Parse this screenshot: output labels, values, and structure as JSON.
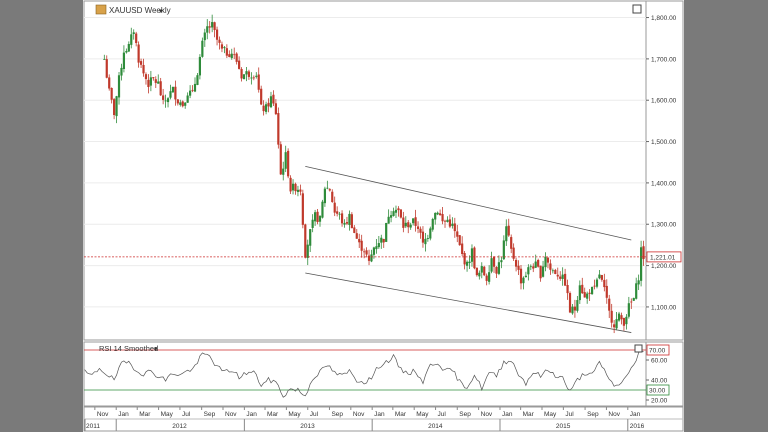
{
  "chart_data": [
    {
      "type": "candlestick",
      "title": "XAUUSD Weekly",
      "title_arrow": "▾",
      "ylim": [
        1020,
        1840
      ],
      "y_ticks": [
        "1,100.00",
        "1,200.00",
        "1,300.00",
        "1,400.00",
        "1,500.00",
        "1,600.00",
        "1,700.00",
        "1,800.00"
      ],
      "y_tick_values": [
        1100,
        1200,
        1300,
        1400,
        1500,
        1600,
        1700,
        1800
      ],
      "current_price": 1221.01,
      "current_price_label": "1,221.01",
      "colors": {
        "up": "#2e8b3a",
        "down": "#c0392b",
        "price_line": "#cc2a2a",
        "channel": "#555555"
      },
      "channel": {
        "upper": [
          [
            "2013-06-24",
            1440
          ],
          [
            "2016-01-11",
            1262
          ]
        ],
        "lower": [
          [
            "2013-06-24",
            1182
          ],
          [
            "2016-01-11",
            1038
          ]
        ]
      },
      "closes": [
        [
          "2011-11-28",
          1700
        ],
        [
          "2011-12-12",
          1620
        ],
        [
          "2011-12-26",
          1570
        ],
        [
          "2012-01-09",
          1650
        ],
        [
          "2012-01-23",
          1720
        ],
        [
          "2012-02-06",
          1730
        ],
        [
          "2012-02-20",
          1770
        ],
        [
          "2012-03-05",
          1700
        ],
        [
          "2012-03-19",
          1665
        ],
        [
          "2012-04-02",
          1640
        ],
        [
          "2012-04-16",
          1650
        ],
        [
          "2012-04-30",
          1640
        ],
        [
          "2012-05-14",
          1590
        ],
        [
          "2012-05-28",
          1610
        ],
        [
          "2012-06-11",
          1625
        ],
        [
          "2012-06-25",
          1600
        ],
        [
          "2012-07-09",
          1590
        ],
        [
          "2012-07-23",
          1620
        ],
        [
          "2012-08-06",
          1615
        ],
        [
          "2012-08-20",
          1670
        ],
        [
          "2012-09-03",
          1735
        ],
        [
          "2012-09-17",
          1775
        ],
        [
          "2012-10-01",
          1780
        ],
        [
          "2012-10-15",
          1745
        ],
        [
          "2012-10-29",
          1720
        ],
        [
          "2012-11-12",
          1715
        ],
        [
          "2012-11-26",
          1715
        ],
        [
          "2012-12-10",
          1695
        ],
        [
          "2012-12-24",
          1660
        ],
        [
          "2013-01-07",
          1665
        ],
        [
          "2013-01-21",
          1665
        ],
        [
          "2013-02-04",
          1665
        ],
        [
          "2013-02-18",
          1580
        ],
        [
          "2013-03-04",
          1580
        ],
        [
          "2013-03-18",
          1605
        ],
        [
          "2013-04-01",
          1570
        ],
        [
          "2013-04-15",
          1420
        ],
        [
          "2013-04-29",
          1465
        ],
        [
          "2013-05-13",
          1385
        ],
        [
          "2013-05-27",
          1390
        ],
        [
          "2013-06-10",
          1385
        ],
        [
          "2013-06-24",
          1230
        ],
        [
          "2013-07-08",
          1280
        ],
        [
          "2013-07-22",
          1320
        ],
        [
          "2013-08-05",
          1310
        ],
        [
          "2013-08-19",
          1390
        ],
        [
          "2013-09-02",
          1385
        ],
        [
          "2013-09-16",
          1330
        ],
        [
          "2013-09-30",
          1320
        ],
        [
          "2013-10-14",
          1295
        ],
        [
          "2013-10-28",
          1320
        ],
        [
          "2013-11-11",
          1280
        ],
        [
          "2013-11-25",
          1250
        ],
        [
          "2013-12-09",
          1240
        ],
        [
          "2013-12-23",
          1205
        ],
        [
          "2014-01-06",
          1245
        ],
        [
          "2014-01-20",
          1260
        ],
        [
          "2014-02-03",
          1265
        ],
        [
          "2014-02-17",
          1325
        ],
        [
          "2014-03-03",
          1340
        ],
        [
          "2014-03-17",
          1330
        ],
        [
          "2014-03-31",
          1295
        ],
        [
          "2014-04-14",
          1300
        ],
        [
          "2014-04-28",
          1305
        ],
        [
          "2014-05-12",
          1295
        ],
        [
          "2014-05-26",
          1250
        ],
        [
          "2014-06-09",
          1275
        ],
        [
          "2014-06-23",
          1320
        ],
        [
          "2014-07-07",
          1335
        ],
        [
          "2014-07-21",
          1305
        ],
        [
          "2014-08-04",
          1310
        ],
        [
          "2014-08-18",
          1295
        ],
        [
          "2014-09-01",
          1265
        ],
        [
          "2014-09-15",
          1225
        ],
        [
          "2014-09-29",
          1200
        ],
        [
          "2014-10-13",
          1235
        ],
        [
          "2014-10-27",
          1170
        ],
        [
          "2014-11-10",
          1190
        ],
        [
          "2014-11-24",
          1170
        ],
        [
          "2014-12-08",
          1220
        ],
        [
          "2014-12-22",
          1190
        ],
        [
          "2015-01-05",
          1220
        ],
        [
          "2015-01-19",
          1290
        ],
        [
          "2015-02-02",
          1235
        ],
        [
          "2015-02-16",
          1205
        ],
        [
          "2015-03-02",
          1165
        ],
        [
          "2015-03-16",
          1180
        ],
        [
          "2015-03-30",
          1200
        ],
        [
          "2015-04-13",
          1200
        ],
        [
          "2015-04-27",
          1180
        ],
        [
          "2015-05-11",
          1225
        ],
        [
          "2015-05-25",
          1190
        ],
        [
          "2015-06-08",
          1185
        ],
        [
          "2015-06-22",
          1175
        ],
        [
          "2015-07-06",
          1160
        ],
        [
          "2015-07-20",
          1090
        ],
        [
          "2015-08-03",
          1095
        ],
        [
          "2015-08-17",
          1160
        ],
        [
          "2015-08-31",
          1120
        ],
        [
          "2015-09-14",
          1140
        ],
        [
          "2015-09-28",
          1140
        ],
        [
          "2015-10-12",
          1180
        ],
        [
          "2015-10-26",
          1140
        ],
        [
          "2015-11-09",
          1085
        ],
        [
          "2015-11-23",
          1060
        ],
        [
          "2015-12-07",
          1075
        ],
        [
          "2015-12-21",
          1065
        ],
        [
          "2016-01-04",
          1100
        ],
        [
          "2016-01-18",
          1120
        ],
        [
          "2016-02-01",
          1175
        ],
        [
          "2016-02-08",
          1240
        ],
        [
          "2016-02-15",
          1221
        ]
      ],
      "x_months": [
        [
          "Nov",
          "2011-11-01"
        ],
        [
          "Jan",
          "2012-01-01"
        ],
        [
          "Mar",
          "2012-03-01"
        ],
        [
          "May",
          "2012-05-01"
        ],
        [
          "Jul",
          "2012-07-01"
        ],
        [
          "Sep",
          "2012-09-01"
        ],
        [
          "Nov",
          "2012-11-01"
        ],
        [
          "Jan",
          "2013-01-01"
        ],
        [
          "Mar",
          "2013-03-01"
        ],
        [
          "May",
          "2013-05-01"
        ],
        [
          "Jul",
          "2013-07-01"
        ],
        [
          "Sep",
          "2013-09-01"
        ],
        [
          "Nov",
          "2013-11-01"
        ],
        [
          "Jan",
          "2014-01-01"
        ],
        [
          "Mar",
          "2014-03-01"
        ],
        [
          "May",
          "2014-05-01"
        ],
        [
          "Jul",
          "2014-07-01"
        ],
        [
          "Sep",
          "2014-09-01"
        ],
        [
          "Nov",
          "2014-11-01"
        ],
        [
          "Jan",
          "2015-01-01"
        ],
        [
          "Mar",
          "2015-03-01"
        ],
        [
          "May",
          "2015-05-01"
        ],
        [
          "Jul",
          "2015-07-01"
        ],
        [
          "Sep",
          "2015-09-01"
        ],
        [
          "Nov",
          "2015-11-01"
        ],
        [
          "Jan",
          "2016-01-01"
        ]
      ],
      "x_years": [
        [
          "2011",
          "2011-10-01"
        ],
        [
          "2012",
          "2012-01-01"
        ],
        [
          "2013",
          "2013-01-01"
        ],
        [
          "2014",
          "2014-01-01"
        ],
        [
          "2015",
          "2015-01-01"
        ],
        [
          "2016",
          "2016-01-01"
        ]
      ],
      "x_range": [
        "2011-10-01",
        "2016-02-22"
      ]
    },
    {
      "type": "line",
      "title": "RSI 14 Smoothed",
      "title_arrow": "▾",
      "ylim": [
        14,
        78
      ],
      "y_ticks": [
        "20.00",
        "40.00",
        "60.00"
      ],
      "y_tick_values": [
        20,
        40,
        60
      ],
      "levels": [
        {
          "value": 70,
          "label": "70.00",
          "color": "#cc2a2a"
        },
        {
          "value": 30,
          "label": "30.00",
          "color": "#2e8b3a"
        }
      ],
      "series": [
        {
          "values": [
            [
              "2011-10-03",
              48
            ],
            [
              "2011-10-24",
              44
            ],
            [
              "2011-11-14",
              52
            ],
            [
              "2011-12-05",
              46
            ],
            [
              "2011-12-26",
              40
            ],
            [
              "2012-01-16",
              56
            ],
            [
              "2012-02-06",
              58
            ],
            [
              "2012-02-27",
              50
            ],
            [
              "2012-03-19",
              46
            ],
            [
              "2012-04-09",
              49
            ],
            [
              "2012-04-30",
              44
            ],
            [
              "2012-05-21",
              40
            ],
            [
              "2012-06-11",
              47
            ],
            [
              "2012-07-02",
              45
            ],
            [
              "2012-07-23",
              49
            ],
            [
              "2012-08-13",
              53
            ],
            [
              "2012-09-03",
              66
            ],
            [
              "2012-09-24",
              64
            ],
            [
              "2012-10-15",
              53
            ],
            [
              "2012-11-05",
              48
            ],
            [
              "2012-11-26",
              50
            ],
            [
              "2012-12-17",
              43
            ],
            [
              "2013-01-07",
              47
            ],
            [
              "2013-01-28",
              48
            ],
            [
              "2013-02-18",
              35
            ],
            [
              "2013-03-11",
              40
            ],
            [
              "2013-04-01",
              38
            ],
            [
              "2013-04-22",
              24
            ],
            [
              "2013-05-13",
              31
            ],
            [
              "2013-06-03",
              30
            ],
            [
              "2013-06-24",
              24
            ],
            [
              "2013-07-15",
              42
            ],
            [
              "2013-08-05",
              48
            ],
            [
              "2013-08-26",
              55
            ],
            [
              "2013-09-16",
              47
            ],
            [
              "2013-10-07",
              44
            ],
            [
              "2013-10-28",
              49
            ],
            [
              "2013-11-18",
              40
            ],
            [
              "2013-12-09",
              38
            ],
            [
              "2013-12-30",
              42
            ],
            [
              "2014-01-20",
              54
            ],
            [
              "2014-02-10",
              58
            ],
            [
              "2014-03-03",
              63
            ],
            [
              "2014-03-24",
              50
            ],
            [
              "2014-04-14",
              47
            ],
            [
              "2014-05-05",
              49
            ],
            [
              "2014-05-26",
              38
            ],
            [
              "2014-06-16",
              55
            ],
            [
              "2014-07-07",
              58
            ],
            [
              "2014-07-28",
              49
            ],
            [
              "2014-08-18",
              50
            ],
            [
              "2014-09-08",
              38
            ],
            [
              "2014-09-29",
              33
            ],
            [
              "2014-10-20",
              45
            ],
            [
              "2014-11-10",
              32
            ],
            [
              "2014-12-01",
              47
            ],
            [
              "2014-12-22",
              44
            ],
            [
              "2015-01-12",
              58
            ],
            [
              "2015-02-02",
              60
            ],
            [
              "2015-02-23",
              46
            ],
            [
              "2015-03-16",
              37
            ],
            [
              "2015-04-06",
              48
            ],
            [
              "2015-04-27",
              44
            ],
            [
              "2015-05-18",
              50
            ],
            [
              "2015-06-08",
              45
            ],
            [
              "2015-06-29",
              42
            ],
            [
              "2015-07-20",
              28
            ],
            [
              "2015-08-10",
              40
            ],
            [
              "2015-08-31",
              47
            ],
            [
              "2015-09-21",
              45
            ],
            [
              "2015-10-12",
              57
            ],
            [
              "2015-11-02",
              46
            ],
            [
              "2015-11-23",
              33
            ],
            [
              "2015-12-14",
              38
            ],
            [
              "2016-01-04",
              46
            ],
            [
              "2016-01-25",
              60
            ],
            [
              "2016-02-08",
              72
            ],
            [
              "2016-02-15",
              68
            ]
          ]
        }
      ]
    }
  ]
}
